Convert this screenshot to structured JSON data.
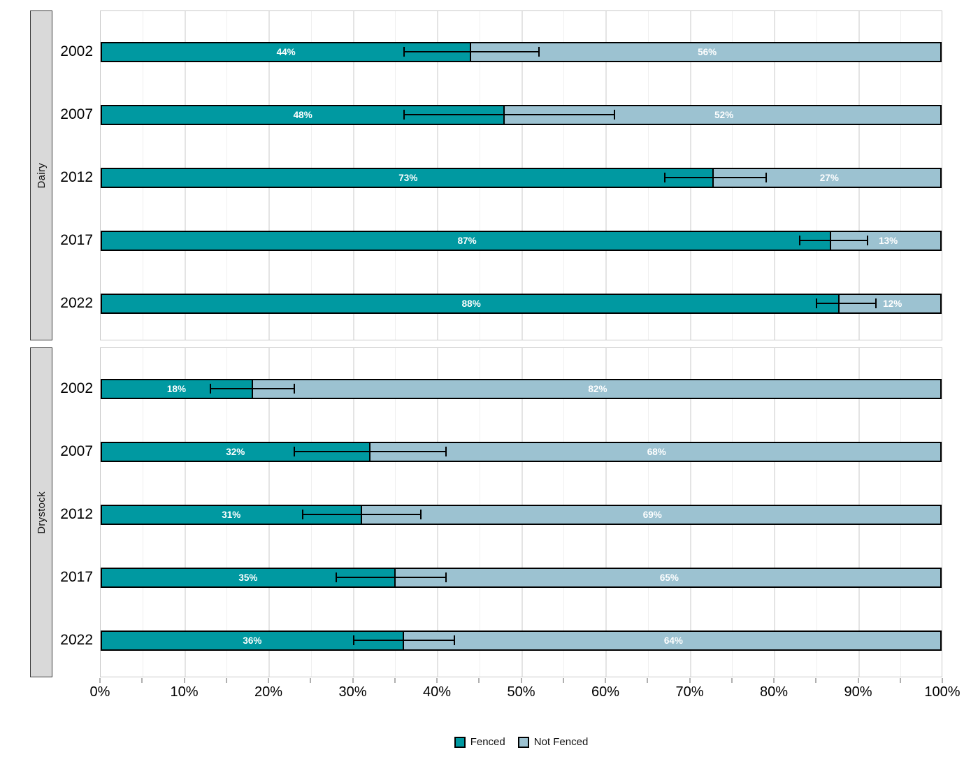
{
  "colors": {
    "fenced": "#0099A1",
    "not_fenced": "#9CC2D1",
    "bar_outline": "#000000",
    "strip_bg": "#D9D9D9",
    "grid_major": "#E4E4E4",
    "grid_minor": "#EFEFEF",
    "label_text": "#FFFFFF"
  },
  "chart_data": {
    "type": "bar",
    "stacked": true,
    "orientation": "horizontal",
    "grid": true,
    "legend_position": "bottom",
    "x_axis": {
      "range": [
        0,
        100
      ],
      "tick_step_labeled": 10,
      "tick_step_minor": 5,
      "tick_labels": [
        "0%",
        "10%",
        "20%",
        "30%",
        "40%",
        "50%",
        "60%",
        "70%",
        "80%",
        "90%",
        "100%"
      ]
    },
    "legend": [
      {
        "label": "Fenced",
        "color_key": "fenced"
      },
      {
        "label": "Not Fenced",
        "color_key": "not_fenced"
      }
    ],
    "panels": [
      {
        "facet": "Dairy",
        "categories": [
          "2002",
          "2007",
          "2012",
          "2017",
          "2022"
        ],
        "series": [
          {
            "name": "Fenced",
            "values": [
              44,
              48,
              73,
              87,
              88
            ],
            "labels": [
              "44%",
              "48%",
              "73%",
              "87%",
              "88%"
            ]
          },
          {
            "name": "Not Fenced",
            "values": [
              56,
              52,
              27,
              13,
              12
            ],
            "labels": [
              "56%",
              "52%",
              "27%",
              "13%",
              "12%"
            ]
          }
        ],
        "error_bars": [
          [
            36,
            52
          ],
          [
            36,
            61
          ],
          [
            67,
            79
          ],
          [
            83,
            91
          ],
          [
            85,
            92
          ]
        ]
      },
      {
        "facet": "Drystock",
        "categories": [
          "2002",
          "2007",
          "2012",
          "2017",
          "2022"
        ],
        "series": [
          {
            "name": "Fenced",
            "values": [
              18,
              32,
              31,
              35,
              36
            ],
            "labels": [
              "18%",
              "32%",
              "31%",
              "35%",
              "36%"
            ]
          },
          {
            "name": "Not Fenced",
            "values": [
              82,
              68,
              69,
              65,
              64
            ],
            "labels": [
              "82%",
              "68%",
              "69%",
              "65%",
              "64%"
            ]
          }
        ],
        "error_bars": [
          [
            13,
            23
          ],
          [
            23,
            41
          ],
          [
            24,
            38
          ],
          [
            28,
            41
          ],
          [
            30,
            42
          ]
        ]
      }
    ]
  }
}
